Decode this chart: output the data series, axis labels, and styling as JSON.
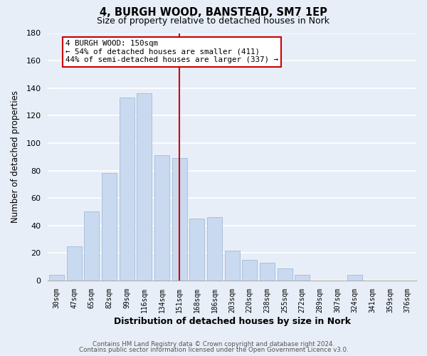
{
  "title_line1": "4, BURGH WOOD, BANSTEAD, SM7 1EP",
  "title_line2": "Size of property relative to detached houses in Nork",
  "xlabel": "Distribution of detached houses by size in Nork",
  "ylabel": "Number of detached properties",
  "bar_labels": [
    "30sqm",
    "47sqm",
    "65sqm",
    "82sqm",
    "99sqm",
    "116sqm",
    "134sqm",
    "151sqm",
    "168sqm",
    "186sqm",
    "203sqm",
    "220sqm",
    "238sqm",
    "255sqm",
    "272sqm",
    "289sqm",
    "307sqm",
    "324sqm",
    "341sqm",
    "359sqm",
    "376sqm"
  ],
  "bar_values": [
    4,
    25,
    50,
    78,
    133,
    136,
    91,
    89,
    45,
    46,
    22,
    15,
    13,
    9,
    4,
    0,
    0,
    4,
    0,
    0,
    0
  ],
  "bar_color": "#c9d9f0",
  "bar_edge_color": "#a8c0dc",
  "vline_index": 7,
  "vline_color": "#cc0000",
  "annotation_title": "4 BURGH WOOD: 150sqm",
  "annotation_line1": "← 54% of detached houses are smaller (411)",
  "annotation_line2": "44% of semi-detached houses are larger (337) →",
  "annotation_box_facecolor": "#ffffff",
  "annotation_box_edgecolor": "#cc0000",
  "ylim": [
    0,
    180
  ],
  "yticks": [
    0,
    20,
    40,
    60,
    80,
    100,
    120,
    140,
    160,
    180
  ],
  "footer_line1": "Contains HM Land Registry data © Crown copyright and database right 2024.",
  "footer_line2": "Contains public sector information licensed under the Open Government Licence v3.0.",
  "bg_color": "#e8eef8",
  "grid_color": "#ffffff",
  "spine_color": "#aaaaaa"
}
